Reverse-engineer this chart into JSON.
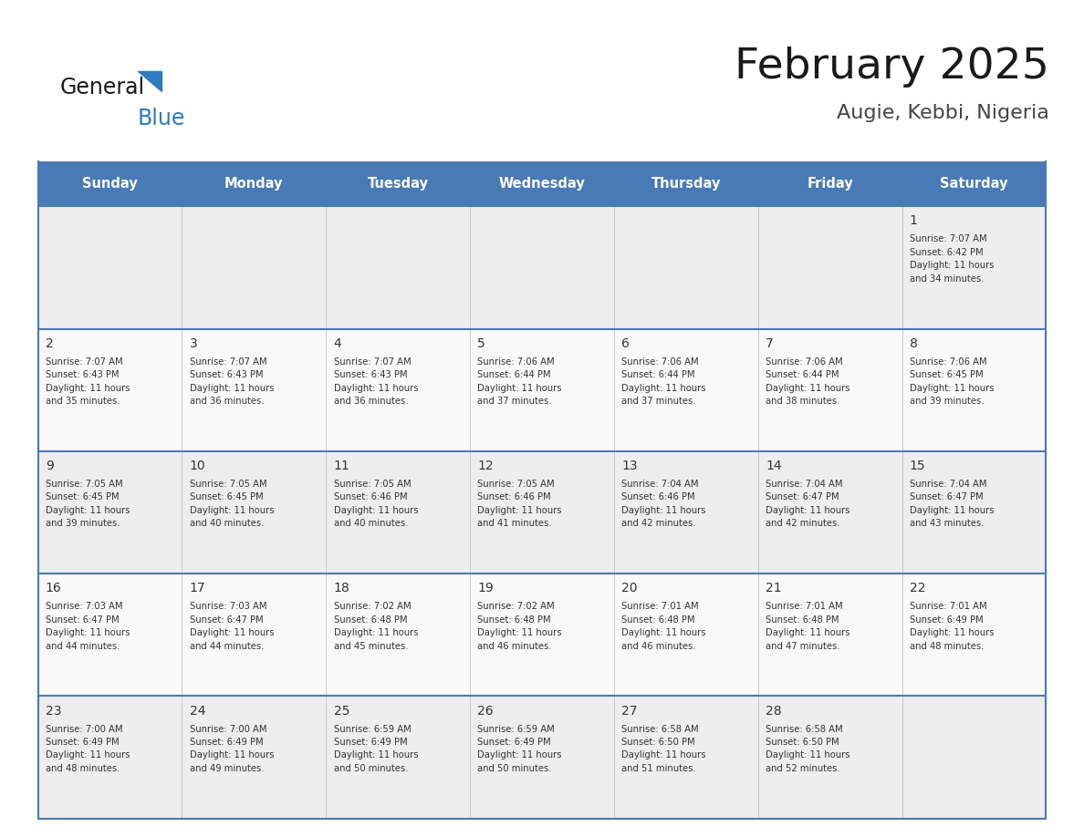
{
  "title": "February 2025",
  "subtitle": "Augie, Kebbi, Nigeria",
  "days_of_week": [
    "Sunday",
    "Monday",
    "Tuesday",
    "Wednesday",
    "Thursday",
    "Friday",
    "Saturday"
  ],
  "header_bg": "#4a7ab5",
  "header_text": "#ffffff",
  "cell_bg_odd": "#eeeeee",
  "cell_bg_even": "#f9f9f9",
  "border_color": "#4a7ab5",
  "row_border_color": "#4a7ab5",
  "day_number_color": "#333333",
  "info_color": "#333333",
  "title_color": "#1a1a1a",
  "subtitle_color": "#444444",
  "logo_general_color": "#1a1a1a",
  "logo_blue_color": "#2e7bbf",
  "weeks": [
    {
      "days": [
        {
          "date": null,
          "info": null
        },
        {
          "date": null,
          "info": null
        },
        {
          "date": null,
          "info": null
        },
        {
          "date": null,
          "info": null
        },
        {
          "date": null,
          "info": null
        },
        {
          "date": null,
          "info": null
        },
        {
          "date": 1,
          "info": "Sunrise: 7:07 AM\nSunset: 6:42 PM\nDaylight: 11 hours\nand 34 minutes."
        }
      ]
    },
    {
      "days": [
        {
          "date": 2,
          "info": "Sunrise: 7:07 AM\nSunset: 6:43 PM\nDaylight: 11 hours\nand 35 minutes."
        },
        {
          "date": 3,
          "info": "Sunrise: 7:07 AM\nSunset: 6:43 PM\nDaylight: 11 hours\nand 36 minutes."
        },
        {
          "date": 4,
          "info": "Sunrise: 7:07 AM\nSunset: 6:43 PM\nDaylight: 11 hours\nand 36 minutes."
        },
        {
          "date": 5,
          "info": "Sunrise: 7:06 AM\nSunset: 6:44 PM\nDaylight: 11 hours\nand 37 minutes."
        },
        {
          "date": 6,
          "info": "Sunrise: 7:06 AM\nSunset: 6:44 PM\nDaylight: 11 hours\nand 37 minutes."
        },
        {
          "date": 7,
          "info": "Sunrise: 7:06 AM\nSunset: 6:44 PM\nDaylight: 11 hours\nand 38 minutes."
        },
        {
          "date": 8,
          "info": "Sunrise: 7:06 AM\nSunset: 6:45 PM\nDaylight: 11 hours\nand 39 minutes."
        }
      ]
    },
    {
      "days": [
        {
          "date": 9,
          "info": "Sunrise: 7:05 AM\nSunset: 6:45 PM\nDaylight: 11 hours\nand 39 minutes."
        },
        {
          "date": 10,
          "info": "Sunrise: 7:05 AM\nSunset: 6:45 PM\nDaylight: 11 hours\nand 40 minutes."
        },
        {
          "date": 11,
          "info": "Sunrise: 7:05 AM\nSunset: 6:46 PM\nDaylight: 11 hours\nand 40 minutes."
        },
        {
          "date": 12,
          "info": "Sunrise: 7:05 AM\nSunset: 6:46 PM\nDaylight: 11 hours\nand 41 minutes."
        },
        {
          "date": 13,
          "info": "Sunrise: 7:04 AM\nSunset: 6:46 PM\nDaylight: 11 hours\nand 42 minutes."
        },
        {
          "date": 14,
          "info": "Sunrise: 7:04 AM\nSunset: 6:47 PM\nDaylight: 11 hours\nand 42 minutes."
        },
        {
          "date": 15,
          "info": "Sunrise: 7:04 AM\nSunset: 6:47 PM\nDaylight: 11 hours\nand 43 minutes."
        }
      ]
    },
    {
      "days": [
        {
          "date": 16,
          "info": "Sunrise: 7:03 AM\nSunset: 6:47 PM\nDaylight: 11 hours\nand 44 minutes."
        },
        {
          "date": 17,
          "info": "Sunrise: 7:03 AM\nSunset: 6:47 PM\nDaylight: 11 hours\nand 44 minutes."
        },
        {
          "date": 18,
          "info": "Sunrise: 7:02 AM\nSunset: 6:48 PM\nDaylight: 11 hours\nand 45 minutes."
        },
        {
          "date": 19,
          "info": "Sunrise: 7:02 AM\nSunset: 6:48 PM\nDaylight: 11 hours\nand 46 minutes."
        },
        {
          "date": 20,
          "info": "Sunrise: 7:01 AM\nSunset: 6:48 PM\nDaylight: 11 hours\nand 46 minutes."
        },
        {
          "date": 21,
          "info": "Sunrise: 7:01 AM\nSunset: 6:48 PM\nDaylight: 11 hours\nand 47 minutes."
        },
        {
          "date": 22,
          "info": "Sunrise: 7:01 AM\nSunset: 6:49 PM\nDaylight: 11 hours\nand 48 minutes."
        }
      ]
    },
    {
      "days": [
        {
          "date": 23,
          "info": "Sunrise: 7:00 AM\nSunset: 6:49 PM\nDaylight: 11 hours\nand 48 minutes."
        },
        {
          "date": 24,
          "info": "Sunrise: 7:00 AM\nSunset: 6:49 PM\nDaylight: 11 hours\nand 49 minutes."
        },
        {
          "date": 25,
          "info": "Sunrise: 6:59 AM\nSunset: 6:49 PM\nDaylight: 11 hours\nand 50 minutes."
        },
        {
          "date": 26,
          "info": "Sunrise: 6:59 AM\nSunset: 6:49 PM\nDaylight: 11 hours\nand 50 minutes."
        },
        {
          "date": 27,
          "info": "Sunrise: 6:58 AM\nSunset: 6:50 PM\nDaylight: 11 hours\nand 51 minutes."
        },
        {
          "date": 28,
          "info": "Sunrise: 6:58 AM\nSunset: 6:50 PM\nDaylight: 11 hours\nand 52 minutes."
        },
        {
          "date": null,
          "info": null
        }
      ]
    }
  ]
}
